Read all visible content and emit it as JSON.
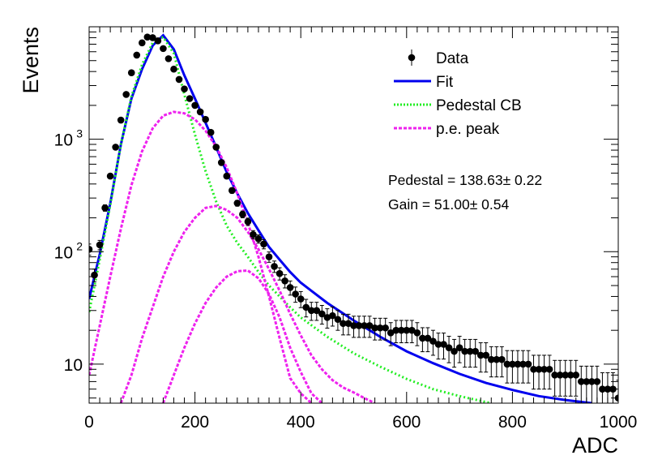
{
  "chart_data": {
    "type": "scatter",
    "title": "",
    "xlabel": "ADC",
    "ylabel": "Events",
    "xlim": [
      0,
      1000
    ],
    "ylim": [
      4.5,
      10000
    ],
    "yscale": "log",
    "x_ticks": [
      "0",
      "200",
      "400",
      "600",
      "800",
      "1000"
    ],
    "y_ticks": [
      {
        "label": "10",
        "value": 10
      },
      {
        "label": "10",
        "sup": "2",
        "value": 100
      },
      {
        "label": "10",
        "sup": "3",
        "value": 1000
      }
    ],
    "legend": {
      "placement": "top-right",
      "entries": [
        {
          "label": "Data",
          "style": "marker",
          "color": "#000000"
        },
        {
          "label": "Fit",
          "style": "solid",
          "color": "#0000ee"
        },
        {
          "label": "Pedestal CB",
          "style": "dotted",
          "color": "#22ee22"
        },
        {
          "label": "p.e. peak",
          "style": "dashed",
          "color": "#ee22ee"
        }
      ]
    },
    "annotations": [
      {
        "text": "Pedestal = 138.63± 0.22"
      },
      {
        "text": "Gain = 51.00± 0.54"
      }
    ],
    "series": [
      {
        "name": "Data",
        "style": "marker",
        "color": "#000000",
        "x": [
          0,
          10,
          20,
          30,
          40,
          50,
          60,
          70,
          80,
          90,
          100,
          110,
          120,
          130,
          140,
          150,
          160,
          170,
          180,
          190,
          200,
          210,
          220,
          230,
          240,
          250,
          260,
          270,
          280,
          290,
          300,
          310,
          320,
          330,
          340,
          350,
          360,
          370,
          380,
          390,
          400,
          410,
          420,
          430,
          440,
          450,
          460,
          470,
          480,
          490,
          500,
          510,
          520,
          530,
          540,
          550,
          560,
          570,
          580,
          590,
          600,
          610,
          620,
          630,
          640,
          650,
          660,
          670,
          680,
          690,
          700,
          710,
          720,
          730,
          740,
          750,
          760,
          770,
          780,
          790,
          800,
          810,
          820,
          830,
          840,
          850,
          860,
          870,
          880,
          890,
          900,
          910,
          920,
          930,
          940,
          950,
          960,
          970,
          980,
          990,
          1000
        ],
        "y": [
          105,
          62,
          115,
          245,
          470,
          850,
          1480,
          2500,
          3900,
          5600,
          7200,
          8100,
          8000,
          7500,
          6400,
          5200,
          4200,
          3400,
          2800,
          2300,
          2000,
          1750,
          1500,
          1150,
          850,
          620,
          470,
          350,
          270,
          215,
          185,
          142,
          130,
          117,
          90,
          74,
          64,
          55,
          48,
          42,
          38,
          32,
          30,
          30,
          28,
          26,
          27,
          25,
          23,
          23,
          22,
          22,
          22,
          22,
          21,
          21,
          21,
          19,
          20,
          20,
          20,
          20,
          19,
          17,
          17,
          16,
          15,
          15,
          14,
          13,
          14,
          13,
          13,
          13,
          12,
          12,
          11,
          11,
          11,
          10,
          10,
          10,
          10,
          10,
          9,
          9,
          9,
          9,
          8,
          8,
          8,
          8,
          8,
          7,
          7,
          7,
          7,
          6,
          6,
          6,
          5
        ],
        "y_err": [
          12,
          8,
          11,
          16,
          22,
          29,
          38,
          50,
          62,
          75,
          85,
          90,
          89,
          86,
          80,
          72,
          65,
          58,
          53,
          48,
          45,
          42,
          39,
          34,
          29,
          25,
          22,
          19,
          16,
          15,
          14,
          12,
          11,
          11,
          9.5,
          8.6,
          8,
          7.4,
          6.9,
          6.5,
          6.2,
          5.7,
          5.5,
          5.5,
          5.3,
          5.1,
          5.2,
          5,
          4.8,
          4.8,
          4.7,
          4.7,
          4.7,
          4.7,
          4.6,
          4.6,
          4.6,
          4.4,
          4.5,
          4.5,
          4.5,
          4.5,
          4.4,
          4.1,
          4.1,
          4,
          3.9,
          3.9,
          3.7,
          3.6,
          3.7,
          3.6,
          3.6,
          3.6,
          3.5,
          3.5,
          3.3,
          3.3,
          3.3,
          3.2,
          3.2,
          3.2,
          3.2,
          3.2,
          3,
          3,
          3,
          3,
          2.8,
          2.8,
          2.8,
          2.8,
          2.8,
          2.6,
          2.6,
          2.6,
          2.6,
          2.4,
          2.4,
          2.4,
          2.2
        ]
      },
      {
        "name": "Fit",
        "style": "solid",
        "color": "#0000ee",
        "x": [
          0,
          20,
          40,
          60,
          80,
          100,
          120,
          140,
          160,
          180,
          200,
          220,
          240,
          260,
          280,
          300,
          320,
          340,
          360,
          380,
          400,
          450,
          500,
          550,
          600,
          650,
          700,
          750,
          800,
          850,
          900,
          950
        ],
        "y": [
          38,
          95,
          270,
          900,
          2300,
          4200,
          6800,
          8400,
          6300,
          3700,
          2300,
          1400,
          850,
          510,
          330,
          220,
          155,
          110,
          85,
          66,
          53,
          35,
          24.5,
          17.5,
          13,
          10.2,
          8.2,
          6.8,
          5.9,
          5.2,
          4.8,
          4.5
        ]
      },
      {
        "name": "Pedestal CB",
        "style": "dotted",
        "color": "#22ee22",
        "x": [
          0,
          20,
          40,
          60,
          80,
          100,
          120,
          140,
          160,
          180,
          200,
          220,
          240,
          260,
          280,
          300,
          320,
          340,
          360,
          380,
          400,
          450,
          500,
          550,
          600,
          650,
          700,
          750,
          760
        ],
        "y": [
          29,
          85,
          260,
          900,
          2400,
          4600,
          7200,
          8100,
          5800,
          2500,
          1100,
          520,
          280,
          170,
          120,
          90,
          66,
          50,
          40,
          32,
          26,
          17.5,
          12.5,
          9.5,
          7.4,
          6,
          5.2,
          4.6,
          4.5
        ]
      },
      {
        "name": "p.e. peak",
        "style": "dashed",
        "color": "#ee22ee",
        "x": [
          0,
          20,
          40,
          60,
          80,
          100,
          120,
          140,
          160,
          180,
          200,
          220,
          240,
          260,
          280,
          300,
          320,
          340,
          360,
          380,
          400,
          420
        ],
        "y": [
          8,
          22,
          60,
          160,
          390,
          780,
          1250,
          1620,
          1750,
          1700,
          1500,
          1190,
          860,
          560,
          330,
          180,
          90,
          40,
          17,
          7.5,
          5.5,
          4.5
        ]
      },
      {
        "name": "p.e. peak",
        "style": "dashed",
        "color": "#ee22ee",
        "x": [
          60,
          80,
          100,
          120,
          140,
          160,
          180,
          200,
          220,
          240,
          260,
          280,
          300,
          320,
          340,
          360,
          380,
          400,
          420,
          440,
          460,
          480,
          500,
          520,
          540
        ],
        "y": [
          4.5,
          8,
          17,
          32,
          60,
          100,
          150,
          200,
          245,
          255,
          235,
          200,
          150,
          105,
          70,
          45,
          28,
          18,
          12,
          9,
          7.2,
          6.2,
          5.6,
          5,
          4.5
        ]
      },
      {
        "name": "p.e. peak",
        "style": "dashed",
        "color": "#ee22ee",
        "x": [
          140,
          160,
          180,
          200,
          220,
          240,
          260,
          280,
          300,
          320,
          340,
          360,
          380,
          400,
          420,
          440
        ],
        "y": [
          4.5,
          8,
          14,
          23,
          35,
          48,
          60,
          67,
          68,
          58,
          42,
          26,
          14,
          8.5,
          5.5,
          4.5
        ]
      }
    ]
  }
}
